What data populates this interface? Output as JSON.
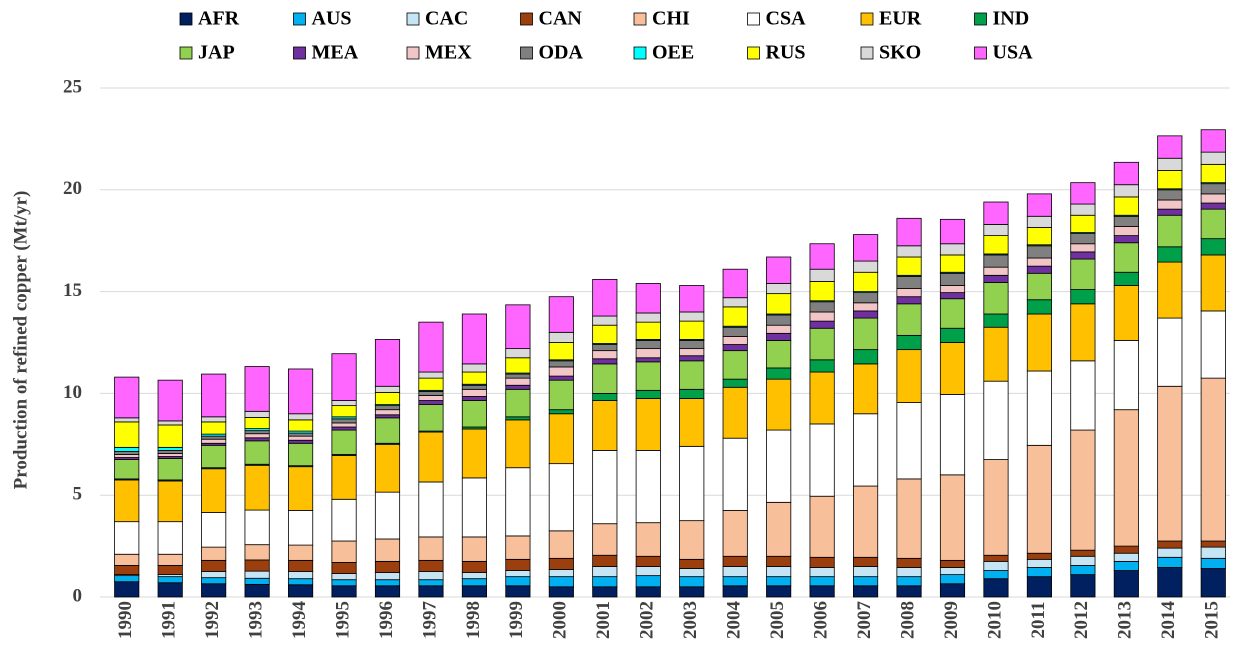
{
  "chart_data": {
    "type": "stacked_bar",
    "y_label": "Production of refined copper (Mt/yr)",
    "categories": [
      "1990",
      "1991",
      "1992",
      "1993",
      "1994",
      "1995",
      "1996",
      "1997",
      "1998",
      "1999",
      "2000",
      "2001",
      "2002",
      "2003",
      "2004",
      "2005",
      "2006",
      "2007",
      "2008",
      "2009",
      "2010",
      "2011",
      "2012",
      "2013",
      "2014",
      "2015"
    ],
    "ylim": [
      0,
      25
    ],
    "yticks": [
      0,
      5,
      10,
      15,
      20,
      25
    ],
    "grid": true,
    "series": [
      {
        "name": "AFR",
        "color": "#002060",
        "values": [
          0.75,
          0.7,
          0.65,
          0.62,
          0.6,
          0.55,
          0.55,
          0.55,
          0.55,
          0.55,
          0.5,
          0.5,
          0.5,
          0.5,
          0.55,
          0.55,
          0.55,
          0.55,
          0.55,
          0.65,
          0.9,
          1.0,
          1.1,
          1.3,
          1.45,
          1.4
        ]
      },
      {
        "name": "AUS",
        "color": "#00b0f0",
        "values": [
          0.3,
          0.3,
          0.3,
          0.3,
          0.3,
          0.3,
          0.3,
          0.3,
          0.35,
          0.45,
          0.5,
          0.5,
          0.55,
          0.5,
          0.45,
          0.45,
          0.45,
          0.45,
          0.45,
          0.45,
          0.4,
          0.45,
          0.45,
          0.45,
          0.5,
          0.5
        ]
      },
      {
        "name": "CAC",
        "color": "#c5e5f5",
        "values": [
          0.05,
          0.1,
          0.3,
          0.35,
          0.35,
          0.3,
          0.35,
          0.4,
          0.3,
          0.3,
          0.35,
          0.5,
          0.45,
          0.4,
          0.5,
          0.5,
          0.45,
          0.5,
          0.45,
          0.35,
          0.45,
          0.4,
          0.45,
          0.4,
          0.45,
          0.55
        ]
      },
      {
        "name": "CAN",
        "color": "#9c3f0e",
        "values": [
          0.45,
          0.45,
          0.55,
          0.55,
          0.55,
          0.55,
          0.55,
          0.55,
          0.55,
          0.55,
          0.55,
          0.55,
          0.5,
          0.45,
          0.5,
          0.5,
          0.5,
          0.45,
          0.45,
          0.35,
          0.3,
          0.3,
          0.3,
          0.35,
          0.35,
          0.3
        ]
      },
      {
        "name": "CHI",
        "color": "#f8c09a",
        "values": [
          0.55,
          0.55,
          0.65,
          0.75,
          0.75,
          1.05,
          1.1,
          1.15,
          1.2,
          1.15,
          1.35,
          1.55,
          1.65,
          1.9,
          2.25,
          2.65,
          3.0,
          3.5,
          3.9,
          4.2,
          4.7,
          5.3,
          5.9,
          6.7,
          7.6,
          8.0
        ]
      },
      {
        "name": "CSA",
        "color": "#ffffff",
        "values": [
          1.6,
          1.6,
          1.7,
          1.7,
          1.7,
          2.05,
          2.3,
          2.7,
          2.9,
          3.35,
          3.3,
          3.6,
          3.55,
          3.65,
          3.55,
          3.55,
          3.55,
          3.55,
          3.75,
          3.95,
          3.85,
          3.65,
          3.4,
          3.4,
          3.35,
          3.3
        ]
      },
      {
        "name": "EUR",
        "color": "#ffc000",
        "values": [
          2.05,
          2.0,
          2.15,
          2.2,
          2.15,
          2.15,
          2.35,
          2.45,
          2.4,
          2.35,
          2.45,
          2.45,
          2.55,
          2.35,
          2.5,
          2.5,
          2.55,
          2.45,
          2.6,
          2.55,
          2.65,
          2.8,
          2.8,
          2.7,
          2.75,
          2.75
        ]
      },
      {
        "name": "IND",
        "color": "#00a04a",
        "values": [
          0.05,
          0.05,
          0.05,
          0.05,
          0.05,
          0.05,
          0.05,
          0.05,
          0.1,
          0.15,
          0.2,
          0.35,
          0.4,
          0.45,
          0.4,
          0.55,
          0.6,
          0.7,
          0.7,
          0.7,
          0.65,
          0.7,
          0.7,
          0.65,
          0.75,
          0.8
        ]
      },
      {
        "name": "JAP",
        "color": "#92d050",
        "values": [
          0.95,
          1.05,
          1.1,
          1.15,
          1.1,
          1.2,
          1.25,
          1.3,
          1.3,
          1.35,
          1.45,
          1.45,
          1.4,
          1.4,
          1.4,
          1.35,
          1.55,
          1.55,
          1.55,
          1.45,
          1.55,
          1.3,
          1.5,
          1.45,
          1.55,
          1.45
        ]
      },
      {
        "name": "MEA",
        "color": "#7030a0",
        "values": [
          0.1,
          0.1,
          0.1,
          0.15,
          0.15,
          0.15,
          0.15,
          0.2,
          0.2,
          0.2,
          0.2,
          0.25,
          0.2,
          0.25,
          0.3,
          0.35,
          0.35,
          0.35,
          0.35,
          0.3,
          0.35,
          0.35,
          0.35,
          0.35,
          0.3,
          0.3
        ]
      },
      {
        "name": "MEX",
        "color": "#f2c6c6",
        "values": [
          0.15,
          0.15,
          0.2,
          0.2,
          0.2,
          0.2,
          0.25,
          0.25,
          0.35,
          0.35,
          0.45,
          0.4,
          0.45,
          0.35,
          0.4,
          0.4,
          0.45,
          0.4,
          0.4,
          0.35,
          0.4,
          0.4,
          0.4,
          0.45,
          0.45,
          0.45
        ]
      },
      {
        "name": "ODA",
        "color": "#808080",
        "values": [
          0.15,
          0.15,
          0.15,
          0.15,
          0.15,
          0.2,
          0.2,
          0.2,
          0.2,
          0.2,
          0.3,
          0.3,
          0.4,
          0.4,
          0.45,
          0.5,
          0.5,
          0.5,
          0.6,
          0.6,
          0.6,
          0.6,
          0.5,
          0.5,
          0.5,
          0.5
        ]
      },
      {
        "name": "OEE",
        "color": "#00ffff",
        "values": [
          0.2,
          0.15,
          0.1,
          0.1,
          0.1,
          0.1,
          0.05,
          0.05,
          0.05,
          0.05,
          0.05,
          0.05,
          0.05,
          0.05,
          0.05,
          0.05,
          0.05,
          0.05,
          0.05,
          0.05,
          0.05,
          0.05,
          0.05,
          0.05,
          0.05,
          0.05
        ]
      },
      {
        "name": "RUS",
        "color": "#ffff00",
        "values": [
          1.25,
          1.1,
          0.6,
          0.55,
          0.55,
          0.55,
          0.6,
          0.6,
          0.6,
          0.75,
          0.85,
          0.9,
          0.85,
          0.9,
          0.95,
          1.0,
          0.95,
          0.95,
          0.9,
          0.85,
          0.9,
          0.85,
          0.85,
          0.9,
          0.9,
          0.9
        ]
      },
      {
        "name": "SKO",
        "color": "#d9d9d9",
        "values": [
          0.2,
          0.2,
          0.25,
          0.3,
          0.3,
          0.25,
          0.3,
          0.3,
          0.4,
          0.45,
          0.5,
          0.45,
          0.45,
          0.45,
          0.45,
          0.5,
          0.6,
          0.55,
          0.55,
          0.55,
          0.55,
          0.55,
          0.55,
          0.6,
          0.6,
          0.6
        ]
      },
      {
        "name": "USA",
        "color": "#ff66ff",
        "values": [
          2.0,
          2.0,
          2.1,
          2.2,
          2.2,
          2.3,
          2.3,
          2.45,
          2.45,
          2.15,
          1.75,
          1.8,
          1.45,
          1.3,
          1.4,
          1.3,
          1.25,
          1.3,
          1.35,
          1.2,
          1.1,
          1.1,
          1.05,
          1.1,
          1.1,
          1.1
        ]
      }
    ]
  }
}
